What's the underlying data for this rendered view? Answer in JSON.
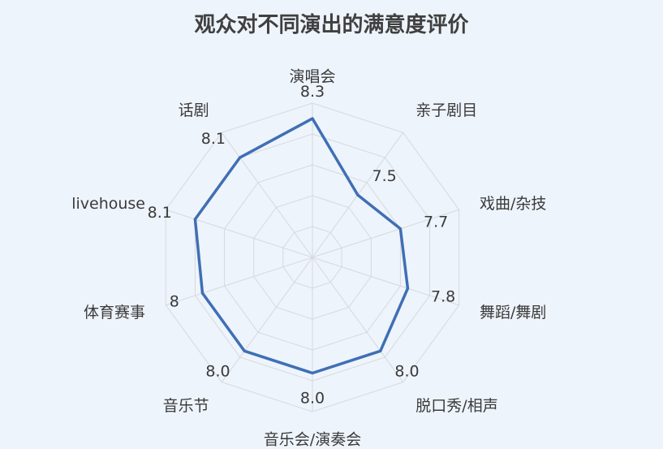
{
  "chart_data": {
    "type": "radar",
    "title": "观众对不同演出的满意度评价",
    "categories": [
      "演唱会",
      "亲子剧目",
      "戏曲/杂技",
      "舞蹈/舞剧",
      "脱口秀/相声",
      "音乐会/演奏会",
      "音乐节",
      "体育赛事",
      "livehouse",
      "话剧"
    ],
    "value_labels": [
      "8.3",
      "7.5",
      "7.7",
      "7.8",
      "8.0",
      "8.0",
      "8.0",
      "8",
      "8.1",
      "8.1"
    ],
    "series": [
      {
        "values": [
          8.3,
          7.5,
          7.7,
          7.8,
          8.0,
          8.0,
          8.0,
          8.0,
          8.1,
          8.1
        ],
        "color": "#3f6fb5"
      }
    ],
    "rlim": [
      6.5,
      8.5
    ],
    "rings": 5,
    "grid": true,
    "legend": "none"
  }
}
